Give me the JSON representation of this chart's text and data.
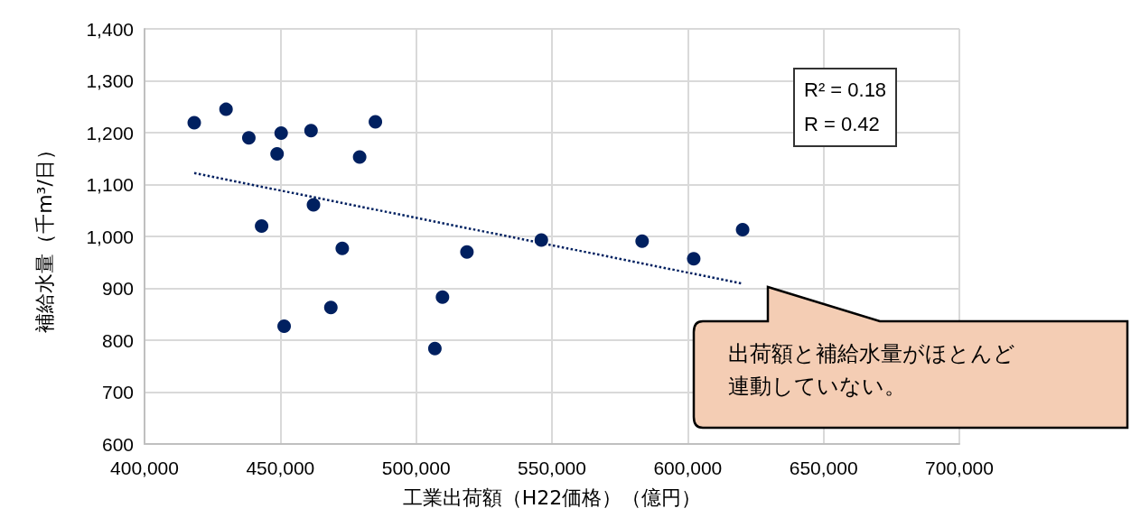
{
  "chart_data": {
    "type": "scatter",
    "xlabel": "工業出荷額（H22価格）（億円）",
    "ylabel": "補給水量（千m³/日）",
    "annotations": [
      "R² = 0.18",
      "R = 0.42",
      "出荷額と補給水量がほとんど連動していない。"
    ],
    "series": [
      {
        "color": "#002060",
        "marker": "circle",
        "x": [
          418300,
          430000,
          438400,
          450300,
          448800,
          461300,
          485000,
          479200,
          462200,
          443100,
          472800,
          518700,
          546100,
          509700,
          468600,
          451400,
          506900,
          583200,
          602200,
          620200
        ],
        "values": [
          1219,
          1245,
          1190,
          1199,
          1159,
          1204,
          1221,
          1153,
          1061,
          1020,
          977,
          970,
          993,
          883,
          863,
          827,
          784,
          991,
          957,
          1013
        ]
      },
      {
        "type": "line",
        "color": "#002060",
        "marker": "none",
        "line_style": "dotted",
        "x": [
          418300,
          620200
        ],
        "values": [
          1122,
          909
        ]
      }
    ],
    "xlim": [
      400000,
      700000
    ],
    "xticks": [
      {
        "value": 400000,
        "label": "400,000"
      },
      {
        "value": 450000,
        "label": "450,000"
      },
      {
        "value": 500000,
        "label": "500,000"
      },
      {
        "value": 550000,
        "label": "550,000"
      },
      {
        "value": 600000,
        "label": "600,000"
      },
      {
        "value": 650000,
        "label": "650,000"
      },
      {
        "value": 700000,
        "label": "700,000"
      }
    ],
    "ylim": [
      600,
      1400
    ],
    "yticks": [
      600,
      700,
      800,
      900,
      {
        "value": 1000,
        "label": "1,000"
      },
      {
        "value": 1100,
        "label": "1,100"
      },
      {
        "value": 1200,
        "label": "1,200"
      },
      {
        "value": 1300,
        "label": "1,300"
      },
      {
        "value": 1400,
        "label": "1,400"
      }
    ],
    "grid": true
  }
}
